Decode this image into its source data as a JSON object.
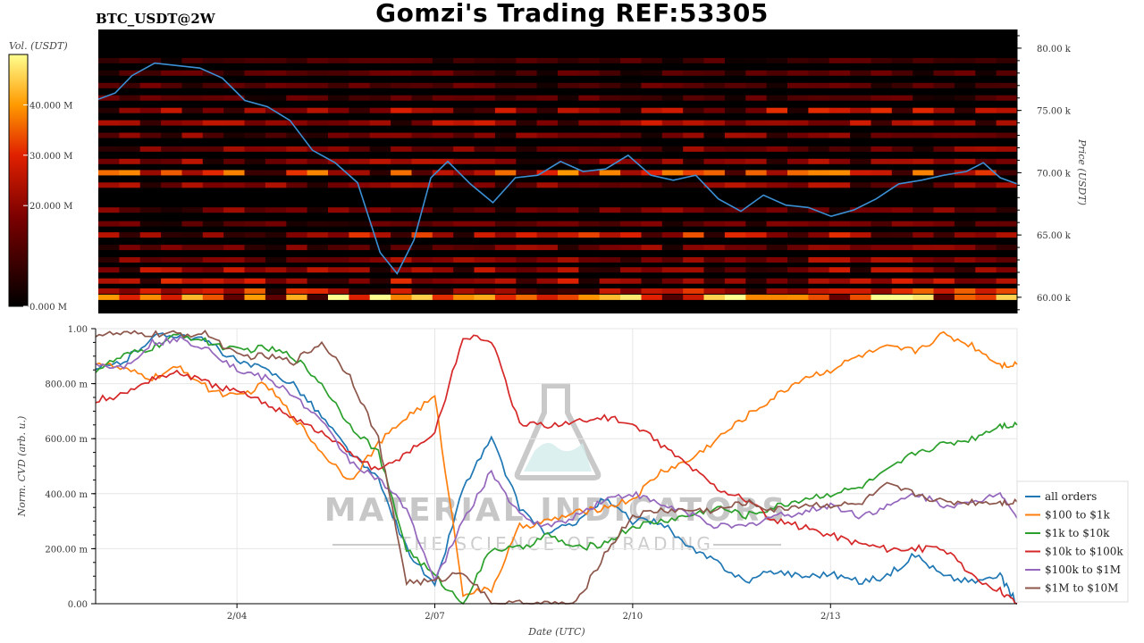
{
  "header": {
    "title": "Gomzi's Trading REF:53305",
    "symbol": "BTC_USDT@2W"
  },
  "watermark": {
    "line1": "MATERIAL INDICATORS",
    "line2": "THE SCIENCE OF TRADING"
  },
  "colors": {
    "price_line": "#3b8fd4",
    "heatmap_low": "#000000",
    "heatmap_mid": "#c00000",
    "heatmap_high": "#ffff80"
  },
  "chart_data": [
    {
      "type": "heatmap",
      "colorbar_label": "Vol. (USDT)",
      "colorbar_ticks": [
        "0.000 M",
        "20.000 M",
        "30.000 M",
        "40.000 M"
      ],
      "colorbar_tick_values": [
        0,
        20,
        30,
        40
      ],
      "colorbar_range": [
        0,
        50
      ],
      "ylabel": "Price (USDT)",
      "ylim": [
        58700,
        81500
      ],
      "y_ticks": [
        "60.00 k",
        "65.00 k",
        "70.00 k",
        "75.00 k",
        "80.00 k"
      ],
      "y_tick_values": [
        60000,
        65000,
        70000,
        75000,
        80000
      ],
      "price_series": {
        "name": "price",
        "x": [
          0,
          0.3,
          0.6,
          1.0,
          1.4,
          1.8,
          2.2,
          2.6,
          3.0,
          3.4,
          3.8,
          4.2,
          4.6,
          5.0,
          5.3,
          5.6,
          5.9,
          6.2,
          6.6,
          7.0,
          7.4,
          7.8,
          8.2,
          8.6,
          9.0,
          9.4,
          9.8,
          10.2,
          10.6,
          11.0,
          11.4,
          11.8,
          12.2,
          12.6,
          13.0,
          13.4,
          13.8,
          14.2,
          14.6,
          15.0,
          15.4,
          15.7,
          16.0,
          16.3
        ],
        "y": [
          75900,
          76400,
          77800,
          78800,
          78600,
          78400,
          77600,
          75800,
          75300,
          74200,
          71800,
          70800,
          69200,
          63600,
          61900,
          64600,
          69600,
          70900,
          69100,
          67600,
          69600,
          69800,
          70900,
          70100,
          70300,
          71400,
          69800,
          69400,
          69800,
          67900,
          66900,
          68200,
          67400,
          67200,
          66500,
          67000,
          67900,
          69100,
          69400,
          69800,
          70100,
          70800,
          69600,
          69100
        ]
      },
      "heat_bands": [
        {
          "price": 60000,
          "intensity": 0.95
        },
        {
          "price": 60500,
          "intensity": 0.65
        },
        {
          "price": 61300,
          "intensity": 0.55
        },
        {
          "price": 62200,
          "intensity": 0.5
        },
        {
          "price": 63000,
          "intensity": 0.45
        },
        {
          "price": 64000,
          "intensity": 0.4
        },
        {
          "price": 65000,
          "intensity": 0.6
        },
        {
          "price": 65900,
          "intensity": 0.35
        },
        {
          "price": 67000,
          "intensity": 0.4
        },
        {
          "price": 69000,
          "intensity": 0.45
        },
        {
          "price": 70000,
          "intensity": 0.7
        },
        {
          "price": 70900,
          "intensity": 0.45
        },
        {
          "price": 71900,
          "intensity": 0.4
        },
        {
          "price": 73000,
          "intensity": 0.4
        },
        {
          "price": 74000,
          "intensity": 0.5
        },
        {
          "price": 75000,
          "intensity": 0.55
        },
        {
          "price": 76000,
          "intensity": 0.3
        },
        {
          "price": 77000,
          "intensity": 0.3
        },
        {
          "price": 78000,
          "intensity": 0.3
        },
        {
          "price": 79000,
          "intensity": 0.25
        }
      ]
    },
    {
      "type": "line",
      "xlabel": "Date (UTC)",
      "ylabel": "Norm. CVD (arb. u.)",
      "ylim": [
        0,
        1
      ],
      "xlim": [
        0,
        16.3
      ],
      "x_ticks": [
        "2/04",
        "2/07",
        "2/10",
        "2/13"
      ],
      "x_tick_values": [
        2.5,
        6.0,
        9.5,
        13.0
      ],
      "y_ticks": [
        "0.00",
        "200.00 m",
        "400.00 m",
        "600.00 m",
        "800.00 m",
        "1.00"
      ],
      "y_tick_values": [
        0,
        0.2,
        0.4,
        0.6,
        0.8,
        1.0
      ],
      "legend_position": "right",
      "x": [
        0,
        0.5,
        1.0,
        1.5,
        2.0,
        2.5,
        3.0,
        3.5,
        4.0,
        4.5,
        5.0,
        5.5,
        6.0,
        6.5,
        7.0,
        7.5,
        8.0,
        8.5,
        9.0,
        9.5,
        10.0,
        10.5,
        11.0,
        11.5,
        12.0,
        12.5,
        13.0,
        13.5,
        14.0,
        14.5,
        15.0,
        15.5,
        16.0,
        16.3
      ],
      "series": [
        {
          "name": "all orders",
          "color": "#1f77b4",
          "values": [
            0.85,
            0.88,
            0.97,
            0.98,
            0.95,
            0.88,
            0.85,
            0.8,
            0.68,
            0.55,
            0.45,
            0.2,
            0.06,
            0.42,
            0.6,
            0.35,
            0.25,
            0.3,
            0.38,
            0.3,
            0.3,
            0.2,
            0.15,
            0.08,
            0.12,
            0.1,
            0.11,
            0.08,
            0.1,
            0.18,
            0.1,
            0.08,
            0.1,
            0.0
          ]
        },
        {
          "name": "$100 to $1k",
          "color": "#ff7f0e",
          "values": [
            0.88,
            0.85,
            0.82,
            0.86,
            0.78,
            0.75,
            0.8,
            0.68,
            0.55,
            0.45,
            0.58,
            0.68,
            0.75,
            0.04,
            0.05,
            0.28,
            0.3,
            0.33,
            0.35,
            0.38,
            0.48,
            0.52,
            0.6,
            0.68,
            0.75,
            0.82,
            0.85,
            0.9,
            0.93,
            0.92,
            0.98,
            0.94,
            0.87,
            0.87
          ]
        },
        {
          "name": "$1k to $10k",
          "color": "#2ca02c",
          "values": [
            0.85,
            0.9,
            0.93,
            0.98,
            0.95,
            0.92,
            0.93,
            0.9,
            0.8,
            0.65,
            0.55,
            0.2,
            0.1,
            0.0,
            0.2,
            0.2,
            0.25,
            0.2,
            0.22,
            0.28,
            0.3,
            0.32,
            0.35,
            0.32,
            0.35,
            0.38,
            0.4,
            0.42,
            0.48,
            0.55,
            0.58,
            0.6,
            0.65,
            0.65
          ]
        },
        {
          "name": "$10k to $100k",
          "color": "#d62728",
          "values": [
            0.74,
            0.76,
            0.82,
            0.84,
            0.8,
            0.77,
            0.73,
            0.68,
            0.62,
            0.55,
            0.48,
            0.55,
            0.62,
            0.97,
            0.96,
            0.65,
            0.65,
            0.66,
            0.68,
            0.65,
            0.58,
            0.5,
            0.42,
            0.38,
            0.3,
            0.28,
            0.25,
            0.22,
            0.2,
            0.2,
            0.2,
            0.1,
            0.05,
            0.0
          ]
        },
        {
          "name": "$100k to $1M",
          "color": "#9467bd",
          "values": [
            0.87,
            0.86,
            0.95,
            0.96,
            0.93,
            0.85,
            0.82,
            0.76,
            0.66,
            0.52,
            0.45,
            0.35,
            0.08,
            0.3,
            0.48,
            0.32,
            0.28,
            0.32,
            0.38,
            0.4,
            0.36,
            0.33,
            0.28,
            0.28,
            0.32,
            0.33,
            0.36,
            0.32,
            0.35,
            0.4,
            0.36,
            0.36,
            0.41,
            0.31
          ]
        },
        {
          "name": "$1M to $10M",
          "color": "#8c564b",
          "values": [
            0.98,
            0.98,
            0.98,
            0.98,
            0.98,
            0.9,
            0.9,
            0.88,
            0.95,
            0.83,
            0.6,
            0.08,
            0.08,
            0.12,
            0.0,
            0.0,
            0.0,
            0.0,
            0.18,
            0.32,
            0.34,
            0.34,
            0.34,
            0.37,
            0.34,
            0.36,
            0.36,
            0.36,
            0.43,
            0.4,
            0.37,
            0.37,
            0.37,
            0.37
          ]
        }
      ]
    }
  ]
}
